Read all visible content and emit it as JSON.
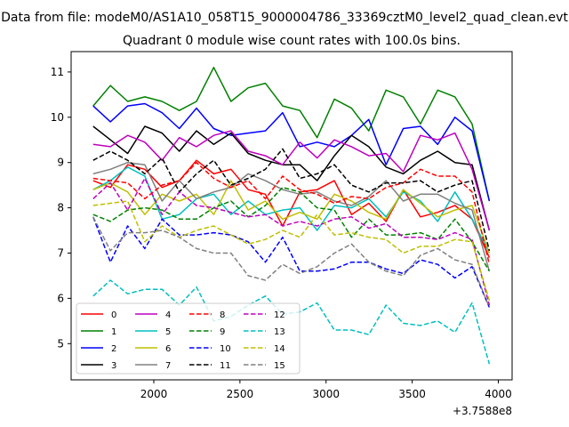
{
  "chart_data": {
    "type": "line",
    "suptitle": "Data from file: modeM0/AS1A10_058T15_9000004786_33369cztM0_level2_quad_clean.evt",
    "title": "Quadrant 0 module wise count rates with 100.0s bins.",
    "xlabel": "",
    "ylabel": "",
    "x_offset_label": "+3.7588e8",
    "xlim": [
      1520,
      4080
    ],
    "ylim": [
      4.2,
      11.45
    ],
    "xticks": [
      2000,
      2500,
      3000,
      3500,
      4000
    ],
    "yticks": [
      5,
      6,
      7,
      8,
      9,
      10,
      11
    ],
    "x": [
      1648,
      1748,
      1848,
      1948,
      2048,
      2148,
      2248,
      2348,
      2448,
      2548,
      2648,
      2748,
      2848,
      2948,
      3048,
      3148,
      3248,
      3348,
      3448,
      3548,
      3648,
      3748,
      3848,
      3948
    ],
    "legend": {
      "location": "lower-left",
      "columns": 4
    },
    "series": [
      {
        "name": "0",
        "color": "#ff0000",
        "dash": "solid",
        "values": [
          8.6,
          8.45,
          8.95,
          8.85,
          8.45,
          8.6,
          9.05,
          8.75,
          8.85,
          8.4,
          8.3,
          7.6,
          8.35,
          8.4,
          8.6,
          7.85,
          8.1,
          7.7,
          8.4,
          7.8,
          7.9,
          8.05,
          7.75,
          6.9
        ]
      },
      {
        "name": "1",
        "color": "#008000",
        "dash": "solid",
        "values": [
          10.25,
          10.7,
          10.35,
          10.45,
          10.35,
          10.15,
          10.35,
          11.1,
          10.35,
          10.65,
          10.75,
          10.25,
          10.15,
          9.55,
          10.4,
          10.2,
          9.7,
          10.6,
          10.45,
          9.85,
          10.6,
          10.45,
          9.85,
          8.15
        ]
      },
      {
        "name": "2",
        "color": "#0000ff",
        "dash": "solid",
        "values": [
          10.25,
          9.9,
          10.25,
          10.3,
          10.1,
          9.75,
          10.2,
          9.75,
          9.6,
          9.65,
          9.7,
          10.1,
          9.35,
          9.45,
          9.35,
          9.6,
          9.95,
          8.95,
          9.75,
          9.8,
          9.4,
          10.0,
          9.7,
          8.15
        ]
      },
      {
        "name": "3",
        "color": "#000000",
        "dash": "solid",
        "values": [
          9.8,
          9.5,
          9.2,
          9.8,
          9.65,
          9.25,
          9.7,
          9.4,
          9.65,
          9.2,
          9.05,
          8.95,
          8.95,
          8.6,
          9.15,
          9.6,
          9.35,
          8.9,
          8.75,
          9.05,
          9.25,
          9.0,
          8.95,
          7.5
        ]
      },
      {
        "name": "4",
        "color": "#bf00bf",
        "dash": "solid",
        "values": [
          9.4,
          9.35,
          9.6,
          9.45,
          9.05,
          9.55,
          9.35,
          9.6,
          9.7,
          9.25,
          9.15,
          8.95,
          9.45,
          9.1,
          9.5,
          9.35,
          9.15,
          9.2,
          8.8,
          9.6,
          9.5,
          9.65,
          8.85,
          7.5
        ]
      },
      {
        "name": "5",
        "color": "#00bfbf",
        "dash": "solid",
        "values": [
          8.4,
          8.6,
          8.9,
          8.7,
          7.75,
          7.85,
          8.2,
          8.3,
          7.85,
          8.15,
          7.85,
          7.95,
          8.0,
          7.5,
          8.05,
          8.0,
          8.2,
          7.8,
          8.35,
          8.15,
          7.7,
          8.35,
          7.75,
          7.0
        ]
      },
      {
        "name": "6",
        "color": "#bfbf00",
        "dash": "solid",
        "values": [
          8.4,
          8.55,
          8.35,
          7.85,
          8.3,
          8.15,
          8.3,
          7.85,
          8.6,
          7.95,
          8.15,
          7.75,
          7.9,
          7.75,
          8.3,
          8.15,
          7.9,
          7.75,
          8.4,
          8.1,
          7.8,
          7.95,
          8.05,
          7.0
        ]
      },
      {
        "name": "7",
        "color": "#808080",
        "dash": "solid",
        "values": [
          8.75,
          8.85,
          9.0,
          8.95,
          8.15,
          8.6,
          8.2,
          8.35,
          8.45,
          8.75,
          8.6,
          8.4,
          8.3,
          8.35,
          8.15,
          8.05,
          8.25,
          8.6,
          8.15,
          8.3,
          8.3,
          8.1,
          7.95,
          6.6
        ]
      },
      {
        "name": "8",
        "color": "#ff0000",
        "dash": "dashed",
        "values": [
          8.65,
          8.6,
          8.55,
          8.2,
          8.5,
          8.6,
          9.0,
          8.65,
          8.45,
          8.6,
          8.2,
          8.7,
          8.4,
          8.3,
          8.1,
          8.25,
          8.2,
          8.45,
          8.55,
          8.85,
          8.7,
          8.7,
          8.35,
          6.75
        ]
      },
      {
        "name": "9",
        "color": "#008000",
        "dash": "dashed",
        "values": [
          7.85,
          7.7,
          7.95,
          8.0,
          7.95,
          7.75,
          7.75,
          8.0,
          8.15,
          7.8,
          8.05,
          8.45,
          8.35,
          8.0,
          7.95,
          7.35,
          7.75,
          7.4,
          7.4,
          7.45,
          7.3,
          7.75,
          7.25,
          6.6
        ]
      },
      {
        "name": "10",
        "color": "#0000ff",
        "dash": "dashed",
        "values": [
          7.8,
          6.8,
          7.6,
          7.1,
          7.75,
          7.4,
          7.4,
          7.45,
          7.4,
          7.25,
          6.8,
          7.35,
          6.6,
          6.6,
          6.65,
          6.8,
          6.8,
          6.65,
          6.55,
          6.85,
          6.75,
          6.45,
          6.7,
          5.8
        ]
      },
      {
        "name": "11",
        "color": "#000000",
        "dash": "dashed",
        "values": [
          9.05,
          9.25,
          9.05,
          8.75,
          9.1,
          8.35,
          8.75,
          9.05,
          8.5,
          8.65,
          8.85,
          9.3,
          8.65,
          8.75,
          8.95,
          8.5,
          8.35,
          8.55,
          8.55,
          8.6,
          8.35,
          8.5,
          8.6,
          7.05
        ]
      },
      {
        "name": "12",
        "color": "#bf00bf",
        "dash": "dashed",
        "values": [
          8.2,
          8.55,
          7.95,
          8.65,
          7.85,
          8.35,
          8.05,
          8.0,
          7.9,
          7.8,
          7.85,
          7.6,
          7.7,
          7.6,
          7.75,
          7.8,
          7.55,
          7.65,
          7.35,
          7.35,
          7.3,
          7.45,
          7.3,
          5.85
        ]
      },
      {
        "name": "13",
        "color": "#00bfbf",
        "dash": "dashed",
        "values": [
          6.05,
          6.4,
          6.1,
          6.2,
          6.2,
          5.85,
          6.25,
          5.5,
          5.6,
          5.85,
          6.05,
          5.65,
          5.7,
          5.9,
          5.3,
          5.3,
          5.2,
          5.85,
          5.45,
          5.4,
          5.5,
          5.25,
          5.9,
          4.55
        ]
      },
      {
        "name": "14",
        "color": "#bfbf00",
        "dash": "dashed",
        "values": [
          8.05,
          8.1,
          8.15,
          7.25,
          7.6,
          7.35,
          7.5,
          7.6,
          7.4,
          7.2,
          7.3,
          7.5,
          7.35,
          7.85,
          7.4,
          7.45,
          7.35,
          7.3,
          7.0,
          7.15,
          7.15,
          7.3,
          7.25,
          5.95
        ]
      },
      {
        "name": "15",
        "color": "#808080",
        "dash": "dashed",
        "values": [
          7.8,
          7.05,
          7.45,
          7.45,
          7.5,
          7.35,
          7.1,
          7.0,
          7.0,
          6.5,
          6.4,
          6.75,
          6.55,
          6.7,
          7.0,
          7.2,
          6.8,
          6.6,
          6.5,
          6.95,
          7.1,
          6.85,
          6.75,
          5.8
        ]
      }
    ]
  }
}
